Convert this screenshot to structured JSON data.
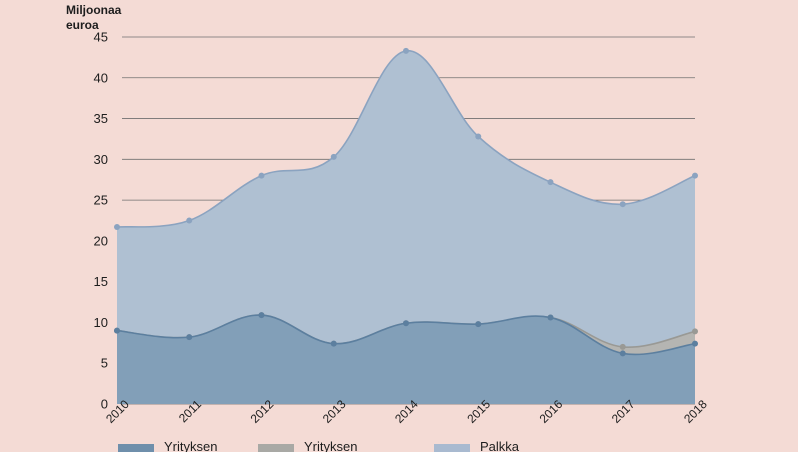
{
  "chart_data": {
    "type": "area",
    "ylabel_line1": "Miljoonaa",
    "ylabel_line2": "euroa",
    "x": [
      "2010",
      "2011",
      "2012",
      "2013",
      "2014",
      "2015",
      "2016",
      "2017",
      "2018"
    ],
    "yticks": [
      0,
      5,
      10,
      15,
      20,
      25,
      30,
      35,
      40,
      45
    ],
    "ylim": [
      0,
      45
    ],
    "grid": true,
    "series": [
      {
        "name": "Palkka",
        "values": [
          21.7,
          22.5,
          28.0,
          30.3,
          43.3,
          32.8,
          27.2,
          24.5,
          28.0
        ],
        "fill": "#afc0d2",
        "stroke": "#8ba3c0"
      },
      {
        "name": "Yrityksen",
        "values": [
          9.0,
          8.2,
          10.9,
          7.4,
          9.9,
          9.8,
          10.6,
          7.0,
          8.9
        ],
        "fill": "#b5b5b2",
        "stroke": "#999995"
      },
      {
        "name": "Yrityksen",
        "values": [
          9.0,
          8.2,
          10.9,
          7.4,
          9.9,
          9.8,
          10.6,
          6.2,
          7.4
        ],
        "fill": "#829fb8",
        "stroke": "#5c7f9f"
      }
    ],
    "legend": [
      {
        "label": "Yrityksen",
        "color": "#6f8fab"
      },
      {
        "label": "Yrityksen",
        "color": "#a9a9a5"
      },
      {
        "label": "Palkka",
        "color": "#a9bad0"
      }
    ]
  }
}
